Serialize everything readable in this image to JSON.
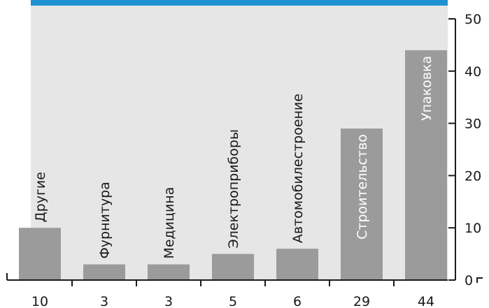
{
  "chart_data": {
    "type": "bar",
    "title": "",
    "xlabel": "",
    "ylabel": "",
    "categories": [
      "Другие",
      "Фурнитура",
      "Медицина",
      "Электроприборы",
      "Автомобилестроение",
      "Строительство",
      "Упаковка"
    ],
    "values": [
      10,
      3,
      3,
      5,
      6,
      29,
      44
    ],
    "value_labels": [
      "10",
      "3",
      "3",
      "5",
      "6",
      "29",
      "44"
    ],
    "ylim": [
      0,
      50
    ],
    "yticks": [
      0,
      10,
      20,
      30,
      40,
      50
    ],
    "y_axis_side": "right",
    "grid": false,
    "legend": "none",
    "label_inside_bar": [
      false,
      false,
      false,
      false,
      false,
      true,
      true
    ]
  },
  "colors": {
    "plot_background": "#e6e6e6",
    "bar": "#9b9b9b",
    "top_band": "#1f93d1",
    "axis": "#1a1a1a"
  }
}
